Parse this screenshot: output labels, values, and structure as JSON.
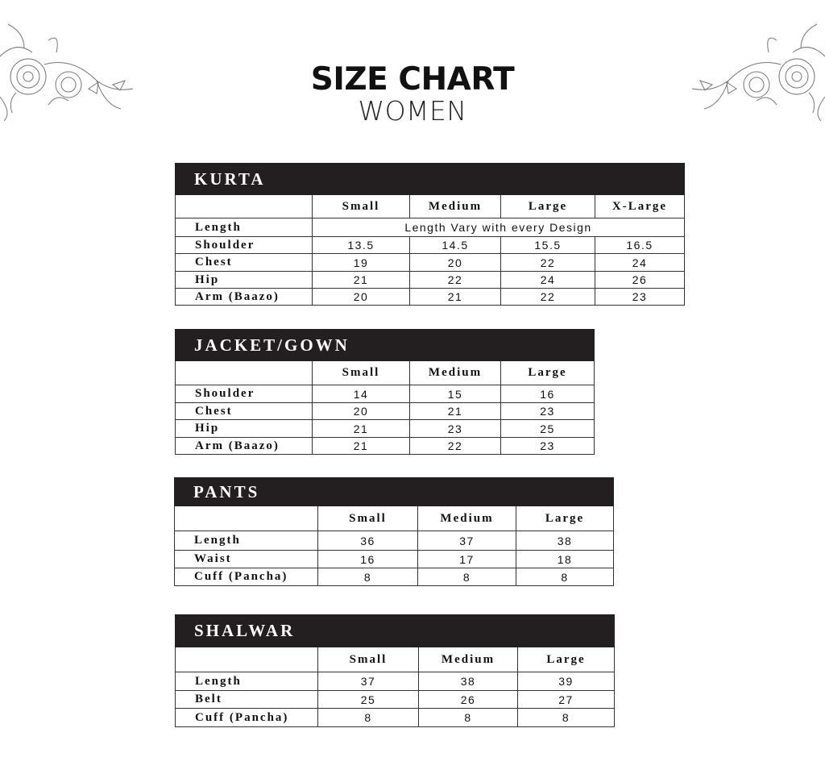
{
  "header": {
    "title": "SIZE CHART",
    "subtitle": "WOMEN"
  },
  "decorations": {
    "left": "floral-sketch-icon",
    "right": "floral-sketch-icon"
  },
  "tables": [
    {
      "title": "KURTA",
      "columns": [
        "",
        "Small",
        "Medium",
        "Large",
        "X-Large"
      ],
      "rows": [
        {
          "label": "Length",
          "span_text": "Length Vary with every Design"
        },
        {
          "label": "Shoulder",
          "values": [
            "13.5",
            "14.5",
            "15.5",
            "16.5"
          ]
        },
        {
          "label": "Chest",
          "values": [
            "19",
            "20",
            "22",
            "24"
          ]
        },
        {
          "label": "Hip",
          "values": [
            "21",
            "22",
            "24",
            "26"
          ]
        },
        {
          "label": "Arm (Baazo)",
          "values": [
            "20",
            "21",
            "22",
            "23"
          ]
        }
      ]
    },
    {
      "title": "JACKET/GOWN",
      "columns": [
        "",
        "Small",
        "Medium",
        "Large"
      ],
      "rows": [
        {
          "label": "Shoulder",
          "values": [
            "14",
            "15",
            "16"
          ]
        },
        {
          "label": "Chest",
          "values": [
            "20",
            "21",
            "23"
          ]
        },
        {
          "label": "Hip",
          "values": [
            "21",
            "23",
            "25"
          ]
        },
        {
          "label": "Arm (Baazo)",
          "values": [
            "21",
            "22",
            "23"
          ]
        }
      ]
    },
    {
      "title": "PANTS",
      "columns": [
        "",
        "Small",
        "Medium",
        "Large"
      ],
      "rows": [
        {
          "label": "Length",
          "values": [
            "36",
            "37",
            "38"
          ]
        },
        {
          "label": "Waist",
          "values": [
            "16",
            "17",
            "18"
          ]
        },
        {
          "label": "Cuff (Pancha)",
          "values": [
            "8",
            "8",
            "8"
          ]
        }
      ]
    },
    {
      "title": "SHALWAR",
      "columns": [
        "",
        "Small",
        "Medium",
        "Large"
      ],
      "rows": [
        {
          "label": "Length",
          "values": [
            "37",
            "38",
            "39"
          ]
        },
        {
          "label": "Belt",
          "values": [
            "25",
            "26",
            "27"
          ]
        },
        {
          "label": "Cuff (Pancha)",
          "values": [
            "8",
            "8",
            "8"
          ]
        }
      ]
    }
  ]
}
